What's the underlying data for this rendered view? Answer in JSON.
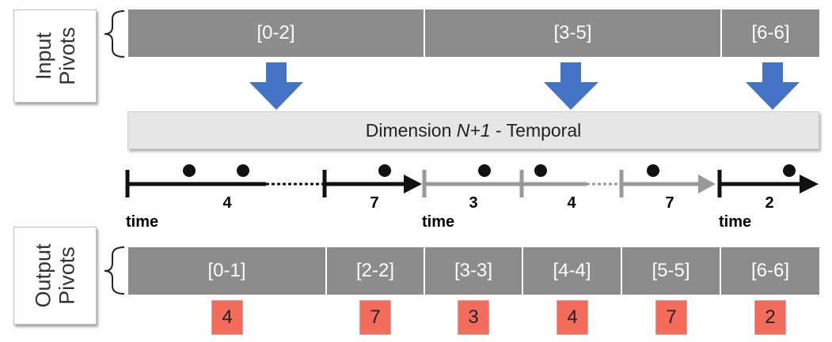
{
  "input_label": "Input\nPivots",
  "output_label": "Output\nPivots",
  "input_pivots": [
    "[0-2]",
    "[3-5]",
    "[6-6]"
  ],
  "dimension": {
    "prefix": "Dimension ",
    "italic": "N+1",
    "suffix": " - Temporal"
  },
  "time_label": "time",
  "segment_values": [
    "4",
    "7",
    "3",
    "4",
    "7",
    "2"
  ],
  "output_pivots": [
    "[0-1]",
    "[2-2]",
    "[3-3]",
    "[4-4]",
    "[5-5]",
    "[6-6]"
  ],
  "output_values": [
    "4",
    "7",
    "3",
    "4",
    "7",
    "2"
  ],
  "colors": {
    "bar": "#8c8c8c",
    "arrow": "#4472c4",
    "badge": "#f26b5b",
    "gray_line": "#999999"
  }
}
